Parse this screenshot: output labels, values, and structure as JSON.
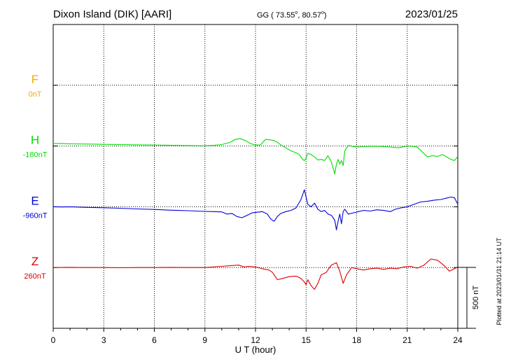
{
  "header": {
    "station": "Dixon Island (DIK)  [AARI]",
    "coords_prefix": "GG ( 73.55",
    "coords_mid": ",  80.57",
    "coords_suffix": ")",
    "degree_sign": "o",
    "date": "2023/01/25"
  },
  "footer": {
    "plotted": "Plotted at 2023/01/31 21:14 UT"
  },
  "colors": {
    "F": "#f5a800",
    "H": "#00dd00",
    "E": "#0000dd",
    "Z": "#dd0000",
    "axis": "#000000",
    "grid": "#000000"
  },
  "chart_data": {
    "type": "line",
    "xlabel": "U T (hour)",
    "xlim": [
      0,
      24
    ],
    "x_ticks": [
      0,
      3,
      6,
      9,
      12,
      15,
      18,
      21,
      24
    ],
    "scale_label": "500 nT",
    "scale_nT": 500,
    "offset_nT": [
      1.5,
      2.5,
      3.5,
      4.5
    ],
    "series": [
      {
        "name": "F",
        "base": "0nT",
        "color_key": "F",
        "x": [],
        "y": []
      },
      {
        "name": "H",
        "base": "-180nT",
        "color_key": "H",
        "x": [
          0,
          0.5,
          1,
          2,
          3,
          4,
          5,
          6,
          7,
          8,
          9,
          9.5,
          10,
          10.5,
          10.8,
          11.1,
          11.4,
          11.7,
          12,
          12.3,
          12.6,
          12.9,
          13.1,
          13.3,
          13.5,
          13.8,
          14.1,
          14.4,
          14.6,
          14.8,
          14.9,
          15.0,
          15.1,
          15.3,
          15.5,
          15.7,
          15.9,
          16.1,
          16.3,
          16.5,
          16.7,
          16.8,
          16.9,
          17.0,
          17.1,
          17.2,
          17.3,
          17.5,
          17.8,
          18.1,
          18.4,
          18.8,
          19.2,
          19.6,
          20.0,
          20.5,
          21.0,
          21.3,
          21.6,
          21.9,
          22.2,
          22.5,
          22.8,
          23.1,
          23.4,
          23.6,
          23.8,
          24
        ],
        "y": [
          20,
          20,
          18,
          16,
          14,
          12,
          10,
          8,
          6,
          4,
          2,
          5,
          12,
          30,
          55,
          60,
          45,
          20,
          8,
          10,
          55,
          50,
          45,
          30,
          10,
          -15,
          -40,
          -55,
          -70,
          -110,
          -120,
          -100,
          -60,
          -70,
          -90,
          -115,
          -110,
          -120,
          -80,
          -130,
          -230,
          -150,
          -110,
          -150,
          -120,
          -160,
          -40,
          5,
          -5,
          -8,
          -5,
          -3,
          -2,
          -5,
          -8,
          -15,
          0,
          -2,
          -10,
          -50,
          -90,
          -80,
          -85,
          -70,
          -95,
          -110,
          -120,
          -85
        ]
      },
      {
        "name": "E",
        "base": "-960nT",
        "color_key": "E",
        "x": [
          0,
          0.5,
          1,
          2,
          3,
          4,
          5,
          6,
          7,
          8,
          9,
          9.5,
          10,
          10.3,
          10.6,
          10.9,
          11.2,
          11.5,
          11.8,
          12.1,
          12.4,
          12.7,
          12.9,
          13.1,
          13.3,
          13.5,
          13.8,
          14.1,
          14.4,
          14.7,
          14.9,
          15.0,
          15.1,
          15.3,
          15.5,
          15.7,
          15.9,
          16.1,
          16.3,
          16.5,
          16.7,
          16.8,
          16.9,
          17.0,
          17.1,
          17.2,
          17.3,
          17.5,
          17.8,
          18.1,
          18.4,
          18.8,
          19.2,
          19.6,
          20.0,
          20.3,
          20.6,
          21.0,
          21.4,
          21.8,
          22.2,
          22.6,
          23.0,
          23.3,
          23.6,
          23.8,
          24
        ],
        "y": [
          0,
          -2,
          0,
          -5,
          -8,
          -12,
          -18,
          -22,
          -28,
          -32,
          -38,
          -40,
          -42,
          -60,
          -55,
          -80,
          -90,
          -70,
          -50,
          -45,
          -40,
          -60,
          -100,
          -120,
          -80,
          -55,
          -40,
          -30,
          -10,
          60,
          140,
          80,
          20,
          0,
          30,
          -20,
          -40,
          -30,
          -60,
          -70,
          -110,
          -190,
          -120,
          -60,
          -140,
          -40,
          -20,
          -60,
          -50,
          -40,
          -30,
          -35,
          -25,
          -30,
          -40,
          -20,
          -10,
          0,
          20,
          40,
          45,
          55,
          60,
          70,
          80,
          75,
          20
        ]
      },
      {
        "name": "Z",
        "base": "260nT",
        "color_key": "Z",
        "x": [
          0,
          1,
          2,
          3,
          4,
          5,
          6,
          7,
          8,
          9,
          9.5,
          10,
          10.5,
          11,
          11.3,
          11.6,
          12,
          12.4,
          12.8,
          13.0,
          13.3,
          13.6,
          14.0,
          14.4,
          14.7,
          14.9,
          15.0,
          15.1,
          15.3,
          15.5,
          15.7,
          15.9,
          16.2,
          16.5,
          16.8,
          17.0,
          17.2,
          17.4,
          17.7,
          18.0,
          18.4,
          18.8,
          19.2,
          19.6,
          20.0,
          20.4,
          20.8,
          21.2,
          21.6,
          22.0,
          22.4,
          22.8,
          23.2,
          23.5,
          23.8,
          24
        ],
        "y": [
          0,
          2,
          0,
          0,
          -2,
          0,
          0,
          2,
          0,
          0,
          5,
          10,
          15,
          20,
          5,
          10,
          5,
          -10,
          -20,
          -40,
          -100,
          -90,
          -75,
          -70,
          -90,
          -120,
          -140,
          -100,
          -150,
          -180,
          -130,
          -60,
          -40,
          20,
          40,
          -30,
          -130,
          -60,
          0,
          -10,
          -20,
          -10,
          -5,
          -15,
          -5,
          -10,
          5,
          10,
          -5,
          20,
          70,
          60,
          15,
          -30,
          -10,
          5
        ]
      }
    ]
  }
}
